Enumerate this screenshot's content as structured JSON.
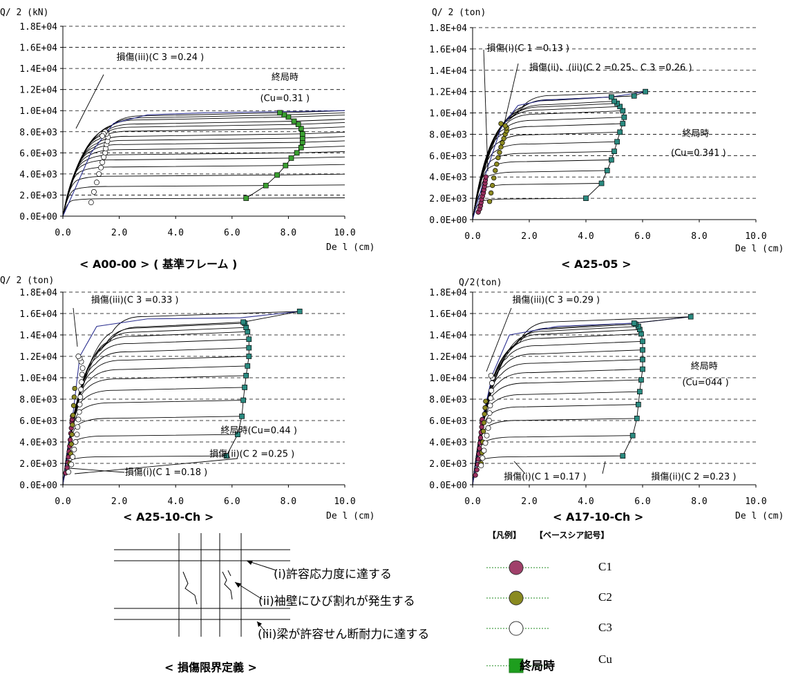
{
  "chart_data": [
    {
      "type": "line",
      "caption": "< A00-00 > ( 基準フレーム )",
      "ylabel": "Q/ 2 (kN)",
      "xlabel": "De l (cm)",
      "xlim": [
        0,
        10
      ],
      "ylim": [
        0,
        18000
      ],
      "xticks": [
        "0.0",
        "2.0",
        "4.0",
        "6.0",
        "8.0",
        "10.0"
      ],
      "yticks": [
        "0.0E+00",
        "2.0E+03",
        "4.0E+03",
        "6.0E+03",
        "8.0E+03",
        "1.0E+04",
        "1.2E+04",
        "1.4E+04",
        "1.6E+04",
        "1.8E+04"
      ],
      "curves": {
        "ult_x": [
          6.5,
          7.2,
          7.6,
          7.9,
          8.1,
          8.3,
          8.45,
          8.5,
          8.5,
          8.5,
          8.45,
          8.35,
          8.2,
          8.0,
          7.85,
          7.7
        ],
        "ult_y": [
          1700,
          2900,
          3900,
          4800,
          5500,
          6000,
          6500,
          7000,
          7400,
          7800,
          8300,
          8700,
          9000,
          9400,
          9600,
          9800
        ],
        "c3_x": [
          1.0,
          1.1,
          1.2,
          1.28,
          1.35,
          1.4,
          1.45,
          1.5,
          1.52,
          1.55,
          1.58,
          1.6,
          1.55,
          1.5,
          1.45,
          1.4
        ],
        "c3_y": [
          1300,
          2300,
          3200,
          4000,
          4600,
          5100,
          5600,
          6000,
          6400,
          6800,
          7100,
          7500,
          7800,
          8000,
          7800,
          7600
        ],
        "envelope": [
          [
            0,
            0
          ],
          [
            1.0,
            6000
          ],
          [
            1.8,
            8800
          ],
          [
            3,
            9600
          ],
          [
            5,
            9800
          ],
          [
            7.7,
            9900
          ],
          [
            10,
            10000
          ]
        ]
      },
      "annotations": [
        {
          "text": "損傷(iii)(C 3 =0.24 )",
          "x": 1.9,
          "y": 14800
        },
        {
          "text": "終局時",
          "x": 7.4,
          "y": 12900
        },
        {
          "text": "(Cu=0.31 )",
          "x": 7.0,
          "y": 10900
        }
      ]
    },
    {
      "type": "line",
      "caption": "< A25-05 >",
      "ylabel": "Q/ 2 (ton)",
      "xlabel": "De l (cm)",
      "xlim": [
        0,
        10
      ],
      "ylim": [
        0,
        18000
      ],
      "xticks": [
        "0.0",
        "2.0",
        "4.0",
        "6.0",
        "8.0",
        "10.0"
      ],
      "yticks": [
        "0.0E+00",
        "2.0E+03",
        "4.0E+03",
        "6.0E+03",
        "8.0E+03",
        "1.0E+04",
        "1.2E+04",
        "1.4E+04",
        "1.6E+04",
        "1.8E+04"
      ],
      "curves": {
        "ult_x": [
          4.0,
          4.55,
          4.75,
          4.9,
          5.0,
          5.1,
          5.2,
          5.3,
          5.35,
          5.3,
          5.2,
          5.1,
          5.0,
          4.9,
          5.7,
          6.1
        ],
        "ult_y": [
          2000,
          3400,
          4600,
          5600,
          6400,
          7300,
          8200,
          9000,
          9600,
          10200,
          10600,
          10900,
          11100,
          11500,
          11600,
          12000
        ],
        "c1_x": [
          0.2,
          0.25,
          0.28,
          0.3,
          0.32,
          0.35,
          0.38,
          0.4,
          0.42,
          0.44,
          0.45,
          0.47
        ],
        "c1_y": [
          700,
          1000,
          1300,
          1600,
          1900,
          2200,
          2500,
          2800,
          3100,
          3400,
          3700,
          4000
        ],
        "c2_x": [
          0.6,
          0.65,
          0.7,
          0.75,
          0.8,
          0.85,
          0.9,
          0.95,
          1.0,
          1.05,
          1.1,
          1.15,
          1.2,
          1.2,
          1.15,
          1.0
        ],
        "c2_y": [
          1700,
          2500,
          3200,
          3900,
          4600,
          5200,
          5800,
          6300,
          6800,
          7200,
          7600,
          8000,
          8300,
          8600,
          8800,
          9000
        ],
        "envelope": [
          [
            0,
            0
          ],
          [
            0.45,
            4200
          ],
          [
            1.0,
            8600
          ],
          [
            1.6,
            10700
          ],
          [
            2.5,
            11200
          ],
          [
            4.9,
            11500
          ],
          [
            6.1,
            12000
          ]
        ]
      },
      "annotations": [
        {
          "text": "損傷(i)(C 1 =0.13 )",
          "x": 0.5,
          "y": 15800
        },
        {
          "text": "損傷(ii)、(iii)(C 2 =0.25、C 3 =0.26 )",
          "x": 2.0,
          "y": 14000
        },
        {
          "text": "終局時",
          "x": 7.4,
          "y": 7800
        },
        {
          "text": "(Cu=0.341 )",
          "x": 7.0,
          "y": 6000
        }
      ]
    },
    {
      "type": "line",
      "caption": "< A25-10-Ch >",
      "ylabel": "Q/ 2 (ton)",
      "xlabel": "De l (cm)",
      "xlim": [
        0,
        10
      ],
      "ylim": [
        0,
        18000
      ],
      "xticks": [
        "0.0",
        "2.0",
        "4.0",
        "6.0",
        "8.0",
        "10.0"
      ],
      "yticks": [
        "0.0E+00",
        "2.0E+03",
        "4.0E+03",
        "6.0E+03",
        "8.0E+03",
        "1.0E+04",
        "1.2E+04",
        "1.4E+04",
        "1.6E+04",
        "1.8E+04"
      ],
      "curves": {
        "ult_x": [
          5.8,
          6.2,
          6.35,
          6.4,
          6.45,
          6.5,
          6.55,
          6.6,
          6.6,
          6.6,
          6.55,
          6.5,
          6.45,
          6.4,
          8.4
        ],
        "ult_y": [
          2700,
          4700,
          6400,
          7900,
          9100,
          10200,
          11100,
          12000,
          12800,
          13600,
          14300,
          14700,
          15100,
          15200,
          16200
        ],
        "c1_x": [
          0.1,
          0.15,
          0.18,
          0.2,
          0.22,
          0.24,
          0.26,
          0.28,
          0.3,
          0.32,
          0.33,
          0.34
        ],
        "c1_y": [
          1100,
          1600,
          2100,
          2600,
          3100,
          3600,
          4200,
          4800,
          5300,
          5800,
          6100,
          6400
        ],
        "c2_x": [
          0.2,
          0.25,
          0.28,
          0.3,
          0.32,
          0.34,
          0.36,
          0.38,
          0.4,
          0.42
        ],
        "c2_y": [
          1200,
          2000,
          2900,
          3800,
          4700,
          5600,
          6500,
          7400,
          8200,
          9000
        ],
        "c3_x": [
          0.2,
          0.3,
          0.35,
          0.4,
          0.45,
          0.5,
          0.52,
          0.55,
          0.58,
          0.6,
          0.62,
          0.64,
          0.66,
          0.68,
          0.7,
          0.65,
          0.6,
          0.55
        ],
        "c3_y": [
          1200,
          1900,
          2600,
          3300,
          4000,
          4700,
          5400,
          6100,
          6800,
          7500,
          8200,
          8900,
          9600,
          10300,
          10900,
          11500,
          11800,
          12000
        ],
        "envelope": [
          [
            0,
            0
          ],
          [
            0.35,
            6400
          ],
          [
            0.6,
            12000
          ],
          [
            1.2,
            14800
          ],
          [
            3,
            15500
          ],
          [
            6.3,
            15600
          ],
          [
            8.4,
            16200
          ]
        ]
      },
      "annotations": [
        {
          "text": "損傷(iii)(C 3 =0.33 )",
          "x": 1.0,
          "y": 17000
        },
        {
          "text": "終局時(Cu=0.44 )",
          "x": 5.6,
          "y": 4800
        },
        {
          "text": "損傷(ii)(C 2 =0.25 )",
          "x": 5.2,
          "y": 2600
        },
        {
          "text": "損傷(i)(C 1 =0.18 )",
          "x": 2.2,
          "y": 900
        }
      ]
    },
    {
      "type": "line",
      "caption": "< A17-10-Ch >",
      "ylabel": "Q/2(ton)",
      "xlabel": "De l (cm)",
      "xlim": [
        0,
        10
      ],
      "ylim": [
        0,
        18000
      ],
      "xticks": [
        "0.0",
        "2.0",
        "4.0",
        "6.0",
        "8.0",
        "10.0"
      ],
      "yticks": [
        "0.0E+00",
        "2.0E+03",
        "4.0E+03",
        "6.0E+03",
        "8.0E+03",
        "1.0E+04",
        "1.2E+04",
        "1.4E+04",
        "1.6E+04",
        "1.8E+04"
      ],
      "curves": {
        "ult_x": [
          5.3,
          5.65,
          5.8,
          5.85,
          5.9,
          5.95,
          6.0,
          6.0,
          6.0,
          6.0,
          5.95,
          5.9,
          5.85,
          5.75,
          5.7,
          7.7
        ],
        "ult_y": [
          2700,
          4600,
          6200,
          7500,
          8700,
          9800,
          10800,
          11700,
          12600,
          13400,
          14100,
          14500,
          14800,
          15000,
          15100,
          15700
        ],
        "c1_x": [
          0.1,
          0.15,
          0.18,
          0.2,
          0.22,
          0.24,
          0.26,
          0.28,
          0.3,
          0.32,
          0.33,
          0.34
        ],
        "c1_y": [
          900,
          1400,
          1900,
          2400,
          2900,
          3400,
          3900,
          4400,
          4900,
          5400,
          5800,
          6100
        ],
        "c2_x": [
          0.3,
          0.33,
          0.36,
          0.38,
          0.4,
          0.42,
          0.44,
          0.46
        ],
        "c2_y": [
          2000,
          3000,
          4000,
          5000,
          5800,
          6600,
          7200,
          7800
        ],
        "c3_x": [
          0.3,
          0.35,
          0.4,
          0.45,
          0.5,
          0.55,
          0.58,
          0.6,
          0.62,
          0.64,
          0.66,
          0.68,
          0.7,
          0.65
        ],
        "c3_y": [
          1800,
          2500,
          3200,
          3900,
          4600,
          5300,
          6000,
          6700,
          7400,
          8100,
          8800,
          9500,
          10000,
          10200
        ],
        "envelope": [
          [
            0,
            0
          ],
          [
            0.35,
            6100
          ],
          [
            0.7,
            10300
          ],
          [
            1.3,
            14000
          ],
          [
            3,
            14800
          ],
          [
            5.7,
            15100
          ],
          [
            7.7,
            15700
          ]
        ]
      },
      "annotations": [
        {
          "text": "損傷(iii)(C 3 =0.29 )",
          "x": 1.4,
          "y": 17000
        },
        {
          "text": "終局時",
          "x": 7.7,
          "y": 10800
        },
        {
          "text": "(Cu=044 )",
          "x": 7.4,
          "y": 9300
        },
        {
          "text": "損傷(i)(C 1 =0.17 )",
          "x": 1.1,
          "y": 500
        },
        {
          "text": "損傷(ii)(C 2 =0.23 )",
          "x": 6.3,
          "y": 500
        }
      ]
    }
  ],
  "diagram": {
    "caption": "< 損傷限界定義 >",
    "label_i": "(i)許容応力度に達する",
    "label_ii": "(ii)袖壁にひび割れが発生する",
    "label_iii": "(iii)梁が許容せん断耐力に達する"
  },
  "legend": {
    "title_left": "【凡例】",
    "title_right": "【ベースシア記号】",
    "items": [
      {
        "symbol": "circle",
        "color": "#a0406a",
        "code": "C1"
      },
      {
        "symbol": "circle",
        "color": "#8a8a20",
        "code": "C2"
      },
      {
        "symbol": "circle",
        "color": "#ffffff",
        "code": "C3"
      },
      {
        "symbol": "square",
        "color": "#1e9e1e",
        "label": "終局時",
        "code": "Cu"
      }
    ]
  },
  "colors": {
    "c1": "#9a3060",
    "c2": "#8d8a22",
    "ult": "#2a8a80",
    "ult_a00": "#3aa030",
    "envelope": "#2b2f8f"
  }
}
